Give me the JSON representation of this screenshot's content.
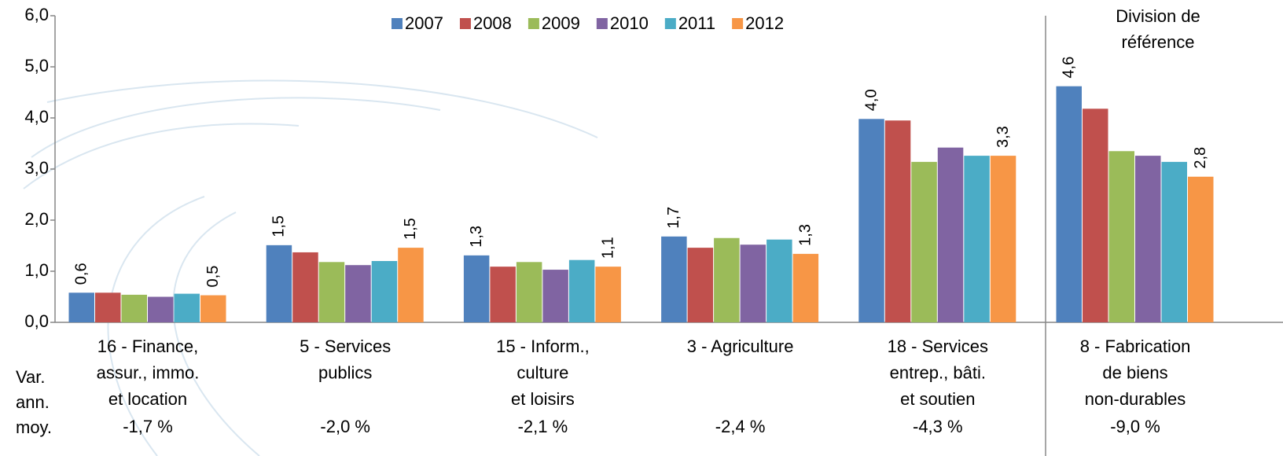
{
  "chart_data": {
    "type": "bar",
    "categories": [
      [
        "16 - Finance,",
        "assur., immo.",
        "et location"
      ],
      [
        "5 - Services",
        "publics"
      ],
      [
        "15 - Inform.,",
        "culture",
        "et loisirs"
      ],
      [
        "3 - Agriculture"
      ],
      [
        "18 - Services",
        "entrep., bâti.",
        "et soutien"
      ],
      [
        "8 - Fabrication",
        "de biens",
        "non-durables"
      ]
    ],
    "series": [
      {
        "name": "2007",
        "color": "#4f81bd",
        "values": [
          0.58,
          1.51,
          1.31,
          1.68,
          3.98,
          4.62
        ],
        "value_labels": [
          "0,6",
          "1,5",
          "1,3",
          "1,7",
          "4,0",
          "4,6"
        ]
      },
      {
        "name": "2008",
        "color": "#c0504d",
        "values": [
          0.58,
          1.37,
          1.09,
          1.46,
          3.95,
          4.18
        ]
      },
      {
        "name": "2009",
        "color": "#9bbb59",
        "values": [
          0.54,
          1.18,
          1.18,
          1.65,
          3.14,
          3.35
        ]
      },
      {
        "name": "2010",
        "color": "#8064a2",
        "values": [
          0.5,
          1.12,
          1.03,
          1.52,
          3.42,
          3.26
        ]
      },
      {
        "name": "2011",
        "color": "#4bacc6",
        "values": [
          0.56,
          1.2,
          1.22,
          1.62,
          3.26,
          3.14
        ]
      },
      {
        "name": "2012",
        "color": "#f79646",
        "values": [
          0.53,
          1.46,
          1.09,
          1.34,
          3.26,
          2.85
        ],
        "value_labels": [
          "0,5",
          "1,5",
          "1,1",
          "1,3",
          "3,3",
          "2,8"
        ]
      }
    ],
    "ylim": [
      0,
      6
    ],
    "yticks": [
      {
        "value": 0,
        "label": "0,0"
      },
      {
        "value": 1,
        "label": "1,0"
      },
      {
        "value": 2,
        "label": "2,0"
      },
      {
        "value": 3,
        "label": "3,0"
      },
      {
        "value": 4,
        "label": "4,0"
      },
      {
        "value": 5,
        "label": "5,0"
      },
      {
        "value": 6,
        "label": "6,0"
      }
    ],
    "reference_label": [
      "Division de",
      "référence"
    ],
    "row_label": [
      "Var.",
      "ann.",
      "moy."
    ],
    "row_values": [
      "-1,7 %",
      "-2,0 %",
      "-2,1 %",
      "-2,4 %",
      "-4,3 %",
      "-9,0 %"
    ],
    "legend": "top"
  }
}
